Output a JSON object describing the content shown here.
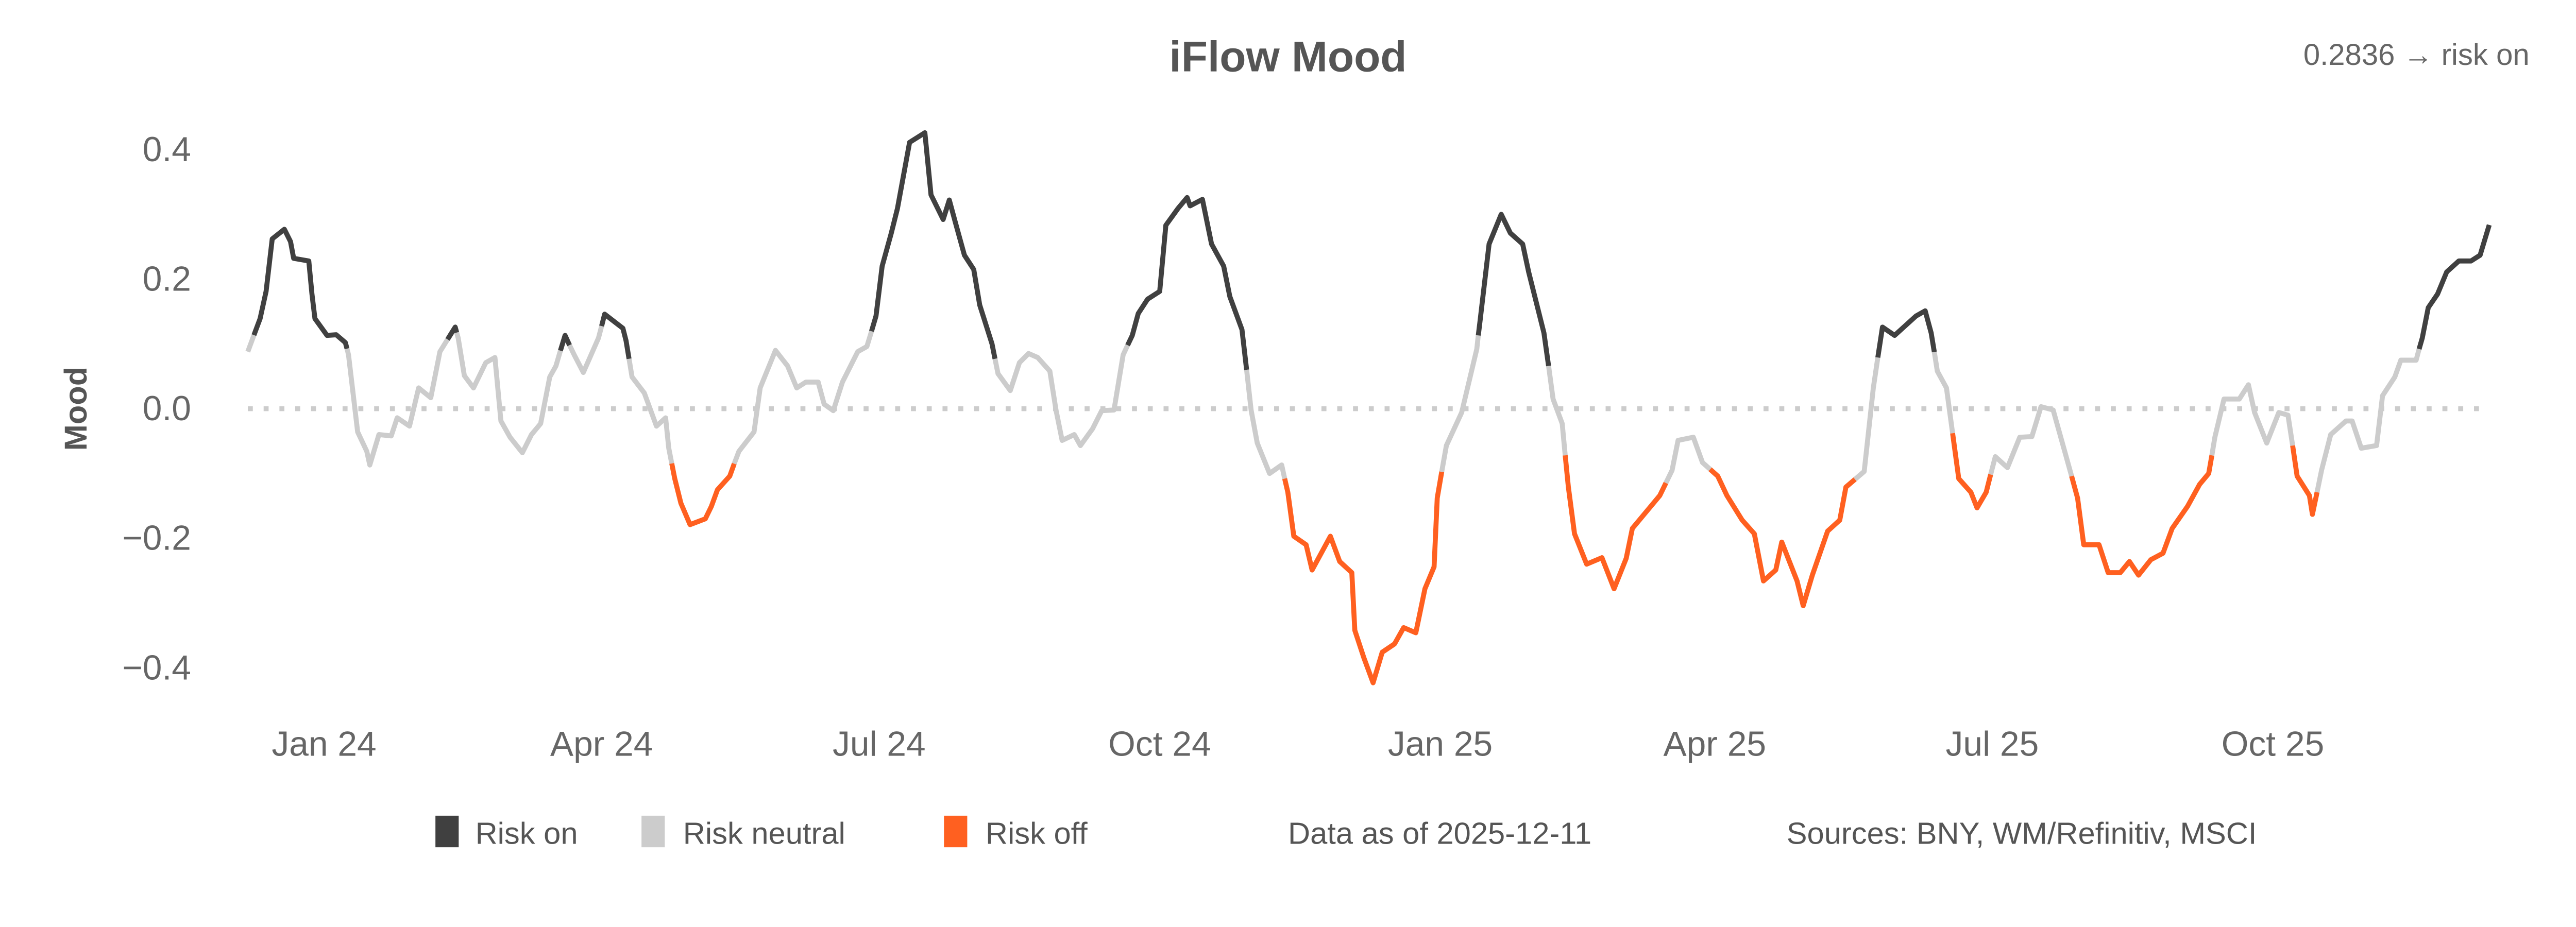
{
  "chart_data": {
    "type": "line",
    "title": "iFlow Mood",
    "latest_readout": "0.2836 → risk on",
    "ylabel": "Mood",
    "xlabel": "",
    "ylim": [
      -0.45,
      0.45
    ],
    "y_ticks": [
      {
        "value": 0.4,
        "label": "0.4"
      },
      {
        "value": 0.2,
        "label": "0.2"
      },
      {
        "value": 0.0,
        "label": "0.0"
      },
      {
        "value": -0.2,
        "label": "−0.2"
      },
      {
        "value": -0.4,
        "label": "−0.4"
      }
    ],
    "x_ticks": [
      {
        "date": "2024-01-01",
        "label": "Jan 24"
      },
      {
        "date": "2024-04-01",
        "label": "Apr 24"
      },
      {
        "date": "2024-07-01",
        "label": "Jul 24"
      },
      {
        "date": "2024-10-01",
        "label": "Oct 24"
      },
      {
        "date": "2025-01-01",
        "label": "Jan 25"
      },
      {
        "date": "2025-04-01",
        "label": "Apr 25"
      },
      {
        "date": "2025-07-01",
        "label": "Jul 25"
      },
      {
        "date": "2025-10-01",
        "label": "Oct 25"
      }
    ],
    "reference_line": {
      "value": 0.0,
      "style": "dotted"
    },
    "grid": false,
    "legend_position": "bottom",
    "regimes": [
      {
        "key": "on",
        "label": "Risk on",
        "color": "#404040"
      },
      {
        "key": "neutral",
        "label": "Risk neutral",
        "color": "#cccccc"
      },
      {
        "key": "off",
        "label": "Risk off",
        "color": "#ff6020"
      }
    ],
    "points": [
      [
        "2023-12-07",
        0.088,
        "neutral"
      ],
      [
        "2023-12-11",
        0.139,
        "on"
      ],
      [
        "2023-12-13",
        0.181,
        "on"
      ],
      [
        "2023-12-15",
        0.262,
        "on"
      ],
      [
        "2023-12-19",
        0.277,
        "on"
      ],
      [
        "2023-12-21",
        0.258,
        "on"
      ],
      [
        "2023-12-22",
        0.232,
        "on"
      ],
      [
        "2023-12-27",
        0.228,
        "on"
      ],
      [
        "2023-12-28",
        0.177,
        "on"
      ],
      [
        "2023-12-29",
        0.139,
        "on"
      ],
      [
        "2024-01-02",
        0.113,
        "on"
      ],
      [
        "2024-01-05",
        0.114,
        "on"
      ],
      [
        "2024-01-08",
        0.102,
        "on"
      ],
      [
        "2024-01-09",
        0.083,
        "neutral"
      ],
      [
        "2024-01-12",
        -0.036,
        "neutral"
      ],
      [
        "2024-01-15",
        -0.066,
        "neutral"
      ],
      [
        "2024-01-16",
        -0.087,
        "neutral"
      ],
      [
        "2024-01-19",
        -0.04,
        "neutral"
      ],
      [
        "2024-01-23",
        -0.042,
        "neutral"
      ],
      [
        "2024-01-25",
        -0.014,
        "neutral"
      ],
      [
        "2024-01-29",
        -0.027,
        "neutral"
      ],
      [
        "2024-02-01",
        0.032,
        "neutral"
      ],
      [
        "2024-02-05",
        0.017,
        "neutral"
      ],
      [
        "2024-02-08",
        0.088,
        "neutral"
      ],
      [
        "2024-02-13",
        0.126,
        "on"
      ],
      [
        "2024-02-14",
        0.109,
        "neutral"
      ],
      [
        "2024-02-16",
        0.051,
        "neutral"
      ],
      [
        "2024-02-19",
        0.032,
        "neutral"
      ],
      [
        "2024-02-23",
        0.071,
        "neutral"
      ],
      [
        "2024-02-26",
        0.079,
        "neutral"
      ],
      [
        "2024-02-28",
        -0.019,
        "neutral"
      ],
      [
        "2024-03-02",
        -0.044,
        "neutral"
      ],
      [
        "2024-03-06",
        -0.068,
        "neutral"
      ],
      [
        "2024-03-09",
        -0.04,
        "neutral"
      ],
      [
        "2024-03-12",
        -0.023,
        "neutral"
      ],
      [
        "2024-03-15",
        0.049,
        "neutral"
      ],
      [
        "2024-03-17",
        0.066,
        "neutral"
      ],
      [
        "2024-03-20",
        0.113,
        "on"
      ],
      [
        "2024-03-23",
        0.083,
        "neutral"
      ],
      [
        "2024-03-26",
        0.056,
        "neutral"
      ],
      [
        "2024-03-31",
        0.109,
        "neutral"
      ],
      [
        "2024-04-02",
        0.146,
        "on"
      ],
      [
        "2024-04-08",
        0.124,
        "on"
      ],
      [
        "2024-04-09",
        0.105,
        "on"
      ],
      [
        "2024-04-11",
        0.049,
        "neutral"
      ],
      [
        "2024-04-15",
        0.024,
        "neutral"
      ],
      [
        "2024-04-19",
        -0.027,
        "neutral"
      ],
      [
        "2024-04-22",
        -0.014,
        "neutral"
      ],
      [
        "2024-04-23",
        -0.061,
        "neutral"
      ],
      [
        "2024-04-25",
        -0.108,
        "off"
      ],
      [
        "2024-04-27",
        -0.146,
        "off"
      ],
      [
        "2024-04-30",
        -0.179,
        "off"
      ],
      [
        "2024-05-05",
        -0.17,
        "off"
      ],
      [
        "2024-05-07",
        -0.151,
        "off"
      ],
      [
        "2024-05-09",
        -0.125,
        "off"
      ],
      [
        "2024-05-13",
        -0.104,
        "off"
      ],
      [
        "2024-05-16",
        -0.066,
        "neutral"
      ],
      [
        "2024-05-21",
        -0.036,
        "neutral"
      ],
      [
        "2024-05-23",
        0.032,
        "neutral"
      ],
      [
        "2024-05-28",
        0.09,
        "neutral"
      ],
      [
        "2024-06-01",
        0.066,
        "neutral"
      ],
      [
        "2024-06-04",
        0.032,
        "neutral"
      ],
      [
        "2024-06-07",
        0.041,
        "neutral"
      ],
      [
        "2024-06-11",
        0.041,
        "neutral"
      ],
      [
        "2024-06-13",
        0.007,
        "neutral"
      ],
      [
        "2024-06-16",
        -0.003,
        "neutral"
      ],
      [
        "2024-06-19",
        0.041,
        "neutral"
      ],
      [
        "2024-06-24",
        0.088,
        "neutral"
      ],
      [
        "2024-06-27",
        0.096,
        "neutral"
      ],
      [
        "2024-06-30",
        0.143,
        "on"
      ],
      [
        "2024-07-02",
        0.22,
        "on"
      ],
      [
        "2024-07-05",
        0.271,
        "on"
      ],
      [
        "2024-07-07",
        0.309,
        "on"
      ],
      [
        "2024-07-11",
        0.411,
        "on"
      ],
      [
        "2024-07-16",
        0.426,
        "on"
      ],
      [
        "2024-07-18",
        0.33,
        "on"
      ],
      [
        "2024-07-22",
        0.292,
        "on"
      ],
      [
        "2024-07-24",
        0.322,
        "on"
      ],
      [
        "2024-07-26",
        0.288,
        "on"
      ],
      [
        "2024-07-29",
        0.237,
        "on"
      ],
      [
        "2024-08-01",
        0.215,
        "on"
      ],
      [
        "2024-08-03",
        0.16,
        "on"
      ],
      [
        "2024-08-07",
        0.1,
        "on"
      ],
      [
        "2024-08-09",
        0.054,
        "neutral"
      ],
      [
        "2024-08-13",
        0.028,
        "neutral"
      ],
      [
        "2024-08-16",
        0.071,
        "neutral"
      ],
      [
        "2024-08-19",
        0.085,
        "neutral"
      ],
      [
        "2024-08-22",
        0.079,
        "neutral"
      ],
      [
        "2024-08-26",
        0.058,
        "neutral"
      ],
      [
        "2024-08-28",
        -0.002,
        "neutral"
      ],
      [
        "2024-08-30",
        -0.049,
        "neutral"
      ],
      [
        "2024-09-03",
        -0.04,
        "neutral"
      ],
      [
        "2024-09-05",
        -0.057,
        "neutral"
      ],
      [
        "2024-09-09",
        -0.031,
        "neutral"
      ],
      [
        "2024-09-12",
        -0.003,
        "neutral"
      ],
      [
        "2024-09-16",
        -0.002,
        "neutral"
      ],
      [
        "2024-09-19",
        0.083,
        "neutral"
      ],
      [
        "2024-09-22",
        0.113,
        "on"
      ],
      [
        "2024-09-24",
        0.147,
        "on"
      ],
      [
        "2024-09-27",
        0.169,
        "on"
      ],
      [
        "2024-10-01",
        0.181,
        "on"
      ],
      [
        "2024-10-03",
        0.283,
        "on"
      ],
      [
        "2024-10-07",
        0.309,
        "on"
      ],
      [
        "2024-10-10",
        0.326,
        "on"
      ],
      [
        "2024-10-11",
        0.313,
        "on"
      ],
      [
        "2024-10-15",
        0.323,
        "on"
      ],
      [
        "2024-10-18",
        0.254,
        "on"
      ],
      [
        "2024-10-22",
        0.22,
        "on"
      ],
      [
        "2024-10-24",
        0.173,
        "on"
      ],
      [
        "2024-10-28",
        0.122,
        "on"
      ],
      [
        "2024-10-31",
        -0.002,
        "neutral"
      ],
      [
        "2024-11-02",
        -0.053,
        "neutral"
      ],
      [
        "2024-11-06",
        -0.1,
        "neutral"
      ],
      [
        "2024-11-10",
        -0.087,
        "neutral"
      ],
      [
        "2024-11-12",
        -0.129,
        "off"
      ],
      [
        "2024-11-14",
        -0.197,
        "off"
      ],
      [
        "2024-11-18",
        -0.21,
        "off"
      ],
      [
        "2024-11-20",
        -0.249,
        "off"
      ],
      [
        "2024-11-26",
        -0.197,
        "off"
      ],
      [
        "2024-11-29",
        -0.236,
        "off"
      ],
      [
        "2024-12-03",
        -0.253,
        "off"
      ],
      [
        "2024-12-04",
        -0.342,
        "off"
      ],
      [
        "2024-12-07",
        -0.385,
        "off"
      ],
      [
        "2024-12-10",
        -0.423,
        "off"
      ],
      [
        "2024-12-13",
        -0.376,
        "off"
      ],
      [
        "2024-12-17",
        -0.363,
        "off"
      ],
      [
        "2024-12-20",
        -0.338,
        "off"
      ],
      [
        "2024-12-24",
        -0.346,
        "off"
      ],
      [
        "2024-12-27",
        -0.278,
        "off"
      ],
      [
        "2024-12-30",
        -0.244,
        "off"
      ],
      [
        "2024-12-31",
        -0.138,
        "off"
      ],
      [
        "2025-01-03",
        -0.057,
        "neutral"
      ],
      [
        "2025-01-08",
        -0.006,
        "neutral"
      ],
      [
        "2025-01-13",
        0.092,
        "neutral"
      ],
      [
        "2025-01-14",
        0.134,
        "on"
      ],
      [
        "2025-01-17",
        0.254,
        "on"
      ],
      [
        "2025-01-21",
        0.3,
        "on"
      ],
      [
        "2025-01-24",
        0.271,
        "on"
      ],
      [
        "2025-01-28",
        0.254,
        "on"
      ],
      [
        "2025-01-30",
        0.211,
        "on"
      ],
      [
        "2025-02-04",
        0.117,
        "on"
      ],
      [
        "2025-02-07",
        0.015,
        "neutral"
      ],
      [
        "2025-02-10",
        -0.023,
        "neutral"
      ],
      [
        "2025-02-12",
        -0.121,
        "off"
      ],
      [
        "2025-02-14",
        -0.193,
        "off"
      ],
      [
        "2025-02-18",
        -0.24,
        "off"
      ],
      [
        "2025-02-23",
        -0.23,
        "off"
      ],
      [
        "2025-02-27",
        -0.278,
        "off"
      ],
      [
        "2025-03-03",
        -0.231,
        "off"
      ],
      [
        "2025-03-05",
        -0.185,
        "off"
      ],
      [
        "2025-03-11",
        -0.151,
        "off"
      ],
      [
        "2025-03-14",
        -0.134,
        "off"
      ],
      [
        "2025-03-18",
        -0.095,
        "neutral"
      ],
      [
        "2025-03-20",
        -0.049,
        "neutral"
      ],
      [
        "2025-03-25",
        -0.044,
        "neutral"
      ],
      [
        "2025-03-28",
        -0.083,
        "neutral"
      ],
      [
        "2025-04-02",
        -0.104,
        "off"
      ],
      [
        "2025-04-05",
        -0.134,
        "off"
      ],
      [
        "2025-04-10",
        -0.172,
        "off"
      ],
      [
        "2025-04-14",
        -0.193,
        "off"
      ],
      [
        "2025-04-17",
        -0.266,
        "off"
      ],
      [
        "2025-04-21",
        -0.249,
        "off"
      ],
      [
        "2025-04-23",
        -0.206,
        "off"
      ],
      [
        "2025-04-28",
        -0.266,
        "off"
      ],
      [
        "2025-04-30",
        -0.304,
        "off"
      ],
      [
        "2025-05-03",
        -0.257,
        "off"
      ],
      [
        "2025-05-08",
        -0.189,
        "off"
      ],
      [
        "2025-05-12",
        -0.172,
        "off"
      ],
      [
        "2025-05-14",
        -0.121,
        "off"
      ],
      [
        "2025-05-20",
        -0.097,
        "neutral"
      ],
      [
        "2025-05-23",
        0.032,
        "neutral"
      ],
      [
        "2025-05-26",
        0.126,
        "on"
      ],
      [
        "2025-05-30",
        0.113,
        "on"
      ],
      [
        "2025-06-06",
        0.143,
        "on"
      ],
      [
        "2025-06-09",
        0.151,
        "on"
      ],
      [
        "2025-06-11",
        0.117,
        "on"
      ],
      [
        "2025-06-13",
        0.058,
        "neutral"
      ],
      [
        "2025-06-16",
        0.032,
        "neutral"
      ],
      [
        "2025-06-20",
        -0.108,
        "off"
      ],
      [
        "2025-06-24",
        -0.129,
        "off"
      ],
      [
        "2025-06-26",
        -0.153,
        "off"
      ],
      [
        "2025-06-29",
        -0.129,
        "off"
      ],
      [
        "2025-07-02",
        -0.074,
        "neutral"
      ],
      [
        "2025-07-06",
        -0.091,
        "neutral"
      ],
      [
        "2025-07-10",
        -0.044,
        "neutral"
      ],
      [
        "2025-07-14",
        -0.043,
        "neutral"
      ],
      [
        "2025-07-17",
        0.003,
        "neutral"
      ],
      [
        "2025-07-21",
        -0.002,
        "neutral"
      ],
      [
        "2025-07-25",
        -0.07,
        "neutral"
      ],
      [
        "2025-07-29",
        -0.138,
        "off"
      ],
      [
        "2025-07-31",
        -0.21,
        "off"
      ],
      [
        "2025-08-05",
        -0.21,
        "off"
      ],
      [
        "2025-08-08",
        -0.253,
        "off"
      ],
      [
        "2025-08-12",
        -0.253,
        "off"
      ],
      [
        "2025-08-15",
        -0.236,
        "off"
      ],
      [
        "2025-08-18",
        -0.257,
        "off"
      ],
      [
        "2025-08-22",
        -0.233,
        "off"
      ],
      [
        "2025-08-26",
        -0.223,
        "off"
      ],
      [
        "2025-08-29",
        -0.185,
        "off"
      ],
      [
        "2025-09-03",
        -0.151,
        "off"
      ],
      [
        "2025-09-07",
        -0.117,
        "off"
      ],
      [
        "2025-09-10",
        -0.1,
        "off"
      ],
      [
        "2025-09-12",
        -0.044,
        "neutral"
      ],
      [
        "2025-09-15",
        0.015,
        "neutral"
      ],
      [
        "2025-09-20",
        0.015,
        "neutral"
      ],
      [
        "2025-09-23",
        0.037,
        "neutral"
      ],
      [
        "2025-09-25",
        -0.006,
        "neutral"
      ],
      [
        "2025-09-29",
        -0.053,
        "neutral"
      ],
      [
        "2025-10-03",
        -0.006,
        "neutral"
      ],
      [
        "2025-10-06",
        -0.01,
        "neutral"
      ],
      [
        "2025-10-09",
        -0.104,
        "off"
      ],
      [
        "2025-10-13",
        -0.134,
        "off"
      ],
      [
        "2025-10-14",
        -0.163,
        "off"
      ],
      [
        "2025-10-17",
        -0.095,
        "neutral"
      ],
      [
        "2025-10-20",
        -0.04,
        "neutral"
      ],
      [
        "2025-10-25",
        -0.019,
        "neutral"
      ],
      [
        "2025-10-27",
        -0.019,
        "neutral"
      ],
      [
        "2025-10-30",
        -0.061,
        "neutral"
      ],
      [
        "2025-11-04",
        -0.057,
        "neutral"
      ],
      [
        "2025-11-06",
        0.02,
        "neutral"
      ],
      [
        "2025-11-10",
        0.049,
        "neutral"
      ],
      [
        "2025-11-12",
        0.075,
        "neutral"
      ],
      [
        "2025-11-17",
        0.075,
        "neutral"
      ],
      [
        "2025-11-19",
        0.109,
        "on"
      ],
      [
        "2025-11-21",
        0.156,
        "on"
      ],
      [
        "2025-11-24",
        0.177,
        "on"
      ],
      [
        "2025-11-27",
        0.211,
        "on"
      ],
      [
        "2025-12-01",
        0.228,
        "on"
      ],
      [
        "2025-12-05",
        0.228,
        "on"
      ],
      [
        "2025-12-08",
        0.237,
        "on"
      ],
      [
        "2025-12-11",
        0.2836,
        "on"
      ]
    ]
  },
  "footer": {
    "data_as_of": "Data as of 2025-12-11",
    "sources": "Sources:  BNY, WM/Refinitiv, MSCI"
  }
}
